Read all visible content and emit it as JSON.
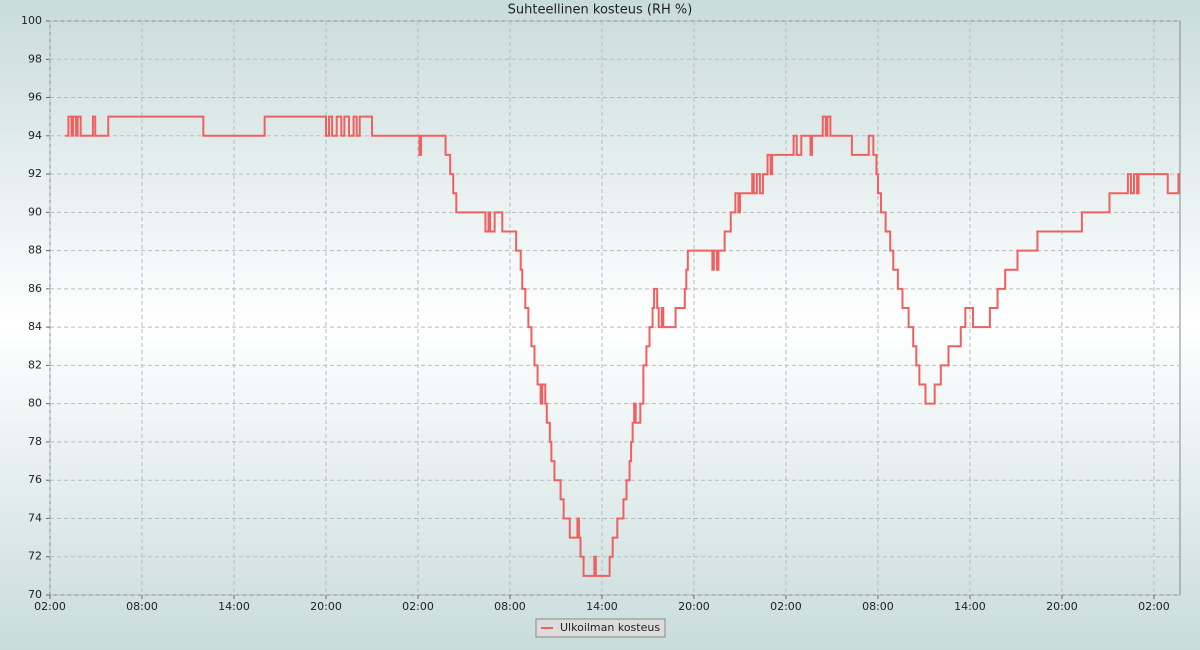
{
  "chart_data": {
    "type": "line",
    "step": true,
    "title": "Suhteellinen kosteus (RH %)",
    "x": [
      1.0,
      1.2,
      1.4,
      1.5,
      1.7,
      1.8,
      2.0,
      2.8,
      2.95,
      3.8,
      10.0,
      14.0,
      18.0,
      18.2,
      18.4,
      18.7,
      19.0,
      19.2,
      19.5,
      19.8,
      20.0,
      20.2,
      21.0,
      24.1,
      24.2,
      25.8,
      26.1,
      26.3,
      26.5,
      28.4,
      28.6,
      28.7,
      29.0,
      29.5,
      30.4,
      30.7,
      30.8,
      31.0,
      31.2,
      31.4,
      31.6,
      31.8,
      32.0,
      32.1,
      32.3,
      32.4,
      32.6,
      32.7,
      32.9,
      33.3,
      33.5,
      33.9,
      34.4,
      34.5,
      34.6,
      34.8,
      35.5,
      35.6,
      36.5,
      36.7,
      37.0,
      37.4,
      37.6,
      37.8,
      37.9,
      38.0,
      38.1,
      38.2,
      38.5,
      38.7,
      38.9,
      39.1,
      39.3,
      39.4,
      39.6,
      39.7,
      39.9,
      40.0,
      40.8,
      41.4,
      41.5,
      41.6,
      43.2,
      43.3,
      43.5,
      43.6,
      44.0,
      44.4,
      44.7,
      44.9,
      45.0,
      45.8,
      45.9,
      46.1,
      46.3,
      46.5,
      46.8,
      47.0,
      47.1,
      48.5,
      48.7,
      49.0,
      49.6,
      49.7,
      50.4,
      50.6,
      50.7,
      50.9,
      52.3,
      53.4,
      53.7,
      53.9,
      54.0,
      54.2,
      54.5,
      54.8,
      55.0,
      55.3,
      55.6,
      56.0,
      56.3,
      56.5,
      56.7,
      57.1,
      57.7,
      58.1,
      58.6,
      59.4,
      59.7,
      60.2,
      61.3,
      61.8,
      62.3,
      63.1,
      64.4,
      67.3,
      69.1,
      70.3,
      70.5,
      70.7,
      70.9,
      71.0,
      72.9,
      73.6
    ],
    "series": [
      {
        "name": "Ulkoilman kosteus",
        "color": "#f06060",
        "values": [
          94,
          95,
          94,
          95,
          94,
          95,
          94,
          95,
          94,
          95,
          94,
          95,
          94,
          95,
          94,
          95,
          94,
          95,
          94,
          95,
          94,
          95,
          94,
          93,
          94,
          93,
          92,
          91,
          90,
          89,
          90,
          89,
          90,
          89,
          88,
          87,
          86,
          85,
          84,
          83,
          82,
          81,
          80,
          81,
          80,
          79,
          78,
          77,
          76,
          75,
          74,
          73,
          74,
          73,
          72,
          71,
          72,
          71,
          72,
          73,
          74,
          75,
          76,
          77,
          78,
          79,
          80,
          79,
          80,
          82,
          83,
          84,
          85,
          86,
          85,
          84,
          85,
          84,
          85,
          86,
          87,
          88,
          87,
          88,
          87,
          88,
          89,
          90,
          91,
          90,
          91,
          92,
          91,
          92,
          91,
          92,
          93,
          92,
          93,
          94,
          93,
          94,
          93,
          94,
          95,
          94,
          95,
          94,
          93,
          94,
          93,
          92,
          91,
          90,
          89,
          88,
          87,
          86,
          85,
          84,
          83,
          82,
          81,
          80,
          81,
          82,
          83,
          84,
          85,
          84,
          85,
          86,
          87,
          88,
          89,
          90,
          91,
          92,
          91,
          92,
          91,
          92,
          91,
          92
        ]
      }
    ],
    "xlim": [
      0,
      73.7
    ],
    "xticks": [
      {
        "value": 0,
        "label": "02:00"
      },
      {
        "value": 6,
        "label": "08:00"
      },
      {
        "value": 12,
        "label": "14:00"
      },
      {
        "value": 18,
        "label": "20:00"
      },
      {
        "value": 24,
        "label": "02:00"
      },
      {
        "value": 30,
        "label": "08:00"
      },
      {
        "value": 36,
        "label": "14:00"
      },
      {
        "value": 42,
        "label": "20:00"
      },
      {
        "value": 48,
        "label": "02:00"
      },
      {
        "value": 54,
        "label": "08:00"
      },
      {
        "value": 60,
        "label": "14:00"
      },
      {
        "value": 66,
        "label": "20:00"
      },
      {
        "value": 72,
        "label": "02:00"
      }
    ],
    "ylim": [
      70,
      100
    ],
    "yticks": [
      70,
      72,
      74,
      76,
      78,
      80,
      82,
      84,
      86,
      88,
      90,
      92,
      94,
      96,
      98,
      100
    ],
    "grid": true,
    "legend": "bottom"
  }
}
